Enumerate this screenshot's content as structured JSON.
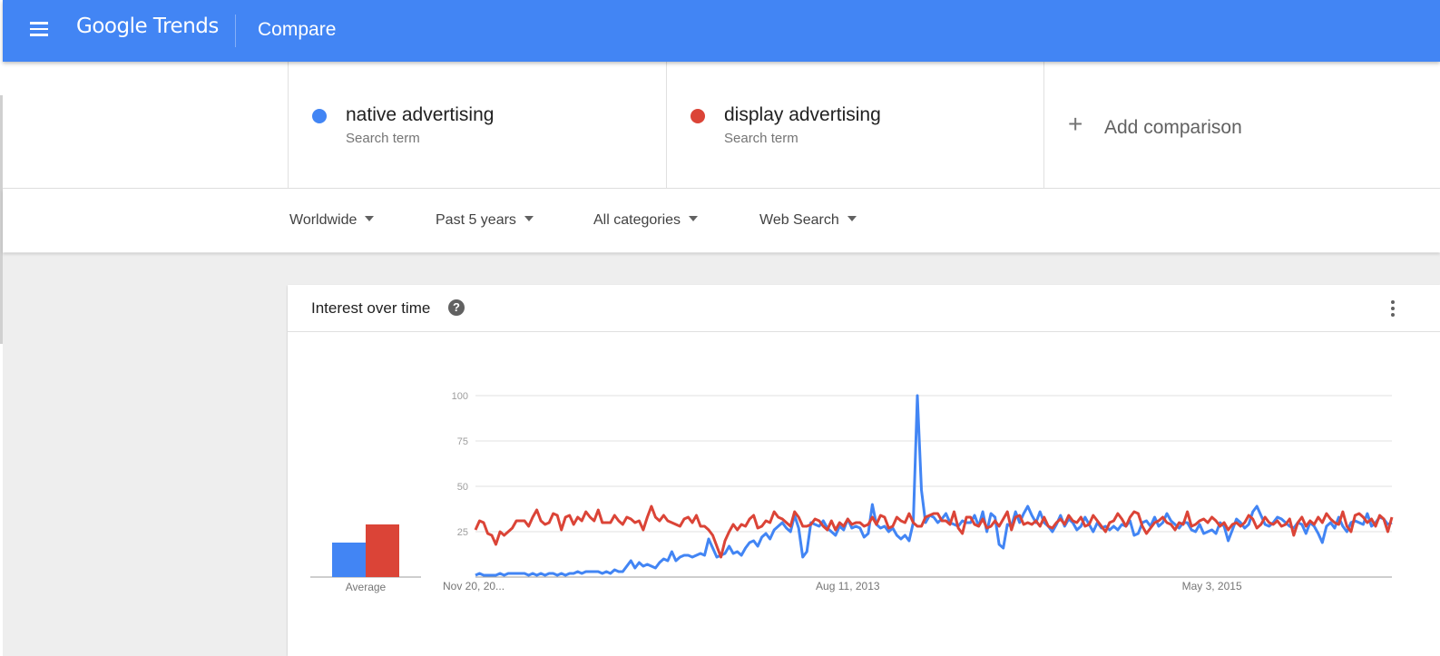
{
  "header": {
    "menu_icon": "hamburger-menu-icon",
    "brand": "Google Trends",
    "page_title": "Compare",
    "background_color": "#4285f4"
  },
  "terms": [
    {
      "name": "native advertising",
      "subtitle": "Search term",
      "color": "#4285f4"
    },
    {
      "name": "display advertising",
      "subtitle": "Search term",
      "color": "#db4437"
    }
  ],
  "add_comparison": {
    "icon": "plus-icon",
    "label": "Add comparison"
  },
  "filters": {
    "region": "Worldwide",
    "time": "Past 5 years",
    "category": "All categories",
    "property": "Web Search"
  },
  "interest_card": {
    "title": "Interest over time",
    "help_icon": "?",
    "more_icon": "more-vert-icon"
  },
  "chart_data": {
    "type": "line",
    "y_ticks": [
      "100",
      "75",
      "50",
      "25"
    ],
    "ylim": [
      0,
      100
    ],
    "x_tick_labels": [
      "Nov 20, 20...",
      "Aug 11, 2013",
      "May 3, 2015"
    ],
    "grid": true,
    "average_label": "Average",
    "averages": [
      {
        "name": "native advertising",
        "value": 19,
        "color": "#4285f4"
      },
      {
        "name": "display advertising",
        "value": 29,
        "color": "#db4437"
      }
    ],
    "series": [
      {
        "name": "native advertising",
        "color": "#4285f4",
        "values": [
          1,
          2,
          1,
          1,
          1,
          1,
          2,
          1,
          2,
          2,
          2,
          2,
          2,
          1,
          2,
          1,
          2,
          1,
          2,
          2,
          1,
          2,
          1,
          2,
          2,
          3,
          2,
          3,
          3,
          3,
          3,
          2,
          3,
          2,
          4,
          3,
          3,
          6,
          9,
          5,
          8,
          6,
          7,
          6,
          5,
          8,
          10,
          9,
          14,
          9,
          11,
          12,
          12,
          11,
          12,
          13,
          12,
          21,
          16,
          11,
          12,
          13,
          17,
          13,
          14,
          12,
          16,
          19,
          20,
          17,
          22,
          24,
          21,
          26,
          28,
          30,
          27,
          25,
          34,
          27,
          11,
          14,
          30,
          29,
          28,
          31,
          27,
          25,
          23,
          28,
          26,
          32,
          27,
          28,
          27,
          22,
          24,
          40,
          29,
          27,
          28,
          25,
          27,
          23,
          21,
          23,
          20,
          30,
          100,
          48,
          30,
          34,
          33,
          30,
          32,
          35,
          30,
          29,
          28,
          31,
          30,
          30,
          34,
          28,
          36,
          25,
          35,
          33,
          18,
          16,
          29,
          28,
          36,
          30,
          35,
          39,
          34,
          30,
          36,
          30,
          28,
          25,
          29,
          34,
          28,
          32,
          30,
          26,
          28,
          33,
          29,
          25,
          30,
          27,
          28,
          26,
          28,
          26,
          29,
          28,
          31,
          23,
          24,
          30,
          31,
          28,
          33,
          28,
          30,
          35,
          31,
          29,
          27,
          30,
          30,
          26,
          25,
          29,
          24,
          25,
          26,
          24,
          30,
          28,
          20,
          26,
          32,
          30,
          27,
          29,
          36,
          39,
          34,
          29,
          28,
          30,
          33,
          32,
          30,
          28,
          27,
          30,
          29,
          24,
          30,
          28,
          24,
          19,
          28,
          30,
          27,
          33,
          28,
          25,
          30,
          31,
          30,
          29,
          35,
          28,
          30,
          33,
          32,
          29,
          30
        ]
      },
      {
        "name": "display advertising",
        "color": "#db4437",
        "values": [
          26,
          31,
          30,
          24,
          23,
          18,
          25,
          23,
          25,
          27,
          31,
          31,
          31,
          28,
          33,
          37,
          31,
          29,
          30,
          35,
          34,
          26,
          33,
          34,
          29,
          33,
          31,
          36,
          33,
          31,
          37,
          30,
          30,
          30,
          34,
          31,
          29,
          33,
          32,
          30,
          31,
          26,
          33,
          39,
          33,
          31,
          34,
          31,
          30,
          29,
          28,
          32,
          33,
          30,
          34,
          28,
          28,
          26,
          23,
          17,
          11,
          20,
          25,
          29,
          26,
          29,
          28,
          32,
          34,
          27,
          28,
          31,
          30,
          36,
          33,
          32,
          30,
          28,
          36,
          33,
          28,
          28,
          29,
          32,
          31,
          28,
          26,
          31,
          26,
          30,
          28,
          32,
          29,
          30,
          30,
          28,
          29,
          33,
          29,
          34,
          33,
          27,
          28,
          33,
          31,
          30,
          35,
          30,
          28,
          28,
          33,
          34,
          35,
          35,
          31,
          31,
          29,
          36,
          27,
          24,
          33,
          33,
          29,
          28,
          32,
          27,
          28,
          31,
          28,
          32,
          36,
          26,
          33,
          34,
          29,
          30,
          29,
          31,
          28,
          33,
          28,
          27,
          30,
          32,
          29,
          34,
          31,
          30,
          33,
          28,
          29,
          34,
          31,
          28,
          25,
          30,
          31,
          35,
          32,
          28,
          33,
          36,
          35,
          28,
          24,
          27,
          30,
          31,
          33,
          30,
          29,
          26,
          30,
          29,
          36,
          28,
          29,
          31,
          32,
          30,
          33,
          31,
          28,
          30,
          26,
          29,
          30,
          28,
          30,
          34,
          32,
          27,
          29,
          33,
          30,
          29,
          31,
          28,
          29,
          32,
          23,
          30,
          33,
          28,
          31,
          29,
          33,
          30,
          35,
          32,
          30,
          29,
          36,
          28,
          25,
          34,
          35,
          33,
          30,
          32,
          28,
          34,
          32,
          25,
          33
        ]
      }
    ]
  }
}
